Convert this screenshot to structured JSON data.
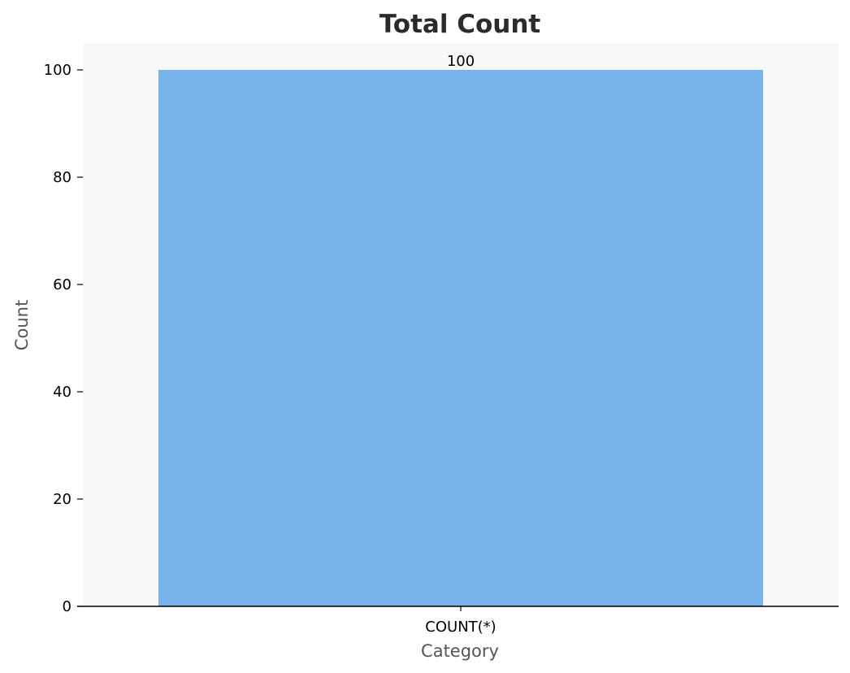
{
  "chart_data": {
    "type": "bar",
    "title": "Total Count",
    "xlabel": "Category",
    "ylabel": "Count",
    "categories": [
      "COUNT(*)"
    ],
    "values": [
      100
    ],
    "data_labels": [
      "100"
    ],
    "ylim": [
      0,
      105
    ],
    "yticks": [
      0,
      20,
      40,
      60,
      80,
      100
    ],
    "grid": false,
    "legend": "none"
  },
  "colors": {
    "bar": "#78b3eb",
    "plot_background": "#f8f8f8",
    "axis": "#000000"
  }
}
